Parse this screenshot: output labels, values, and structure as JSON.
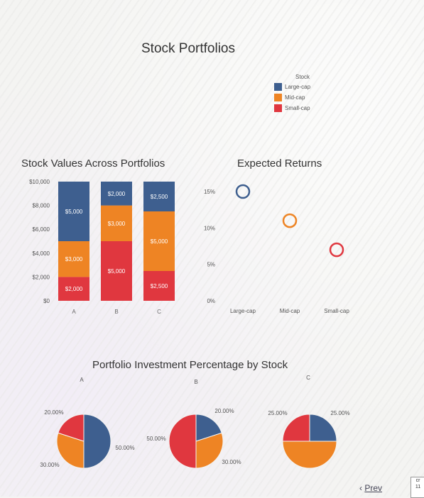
{
  "page": {
    "title": "Stock Portfolios"
  },
  "colors": {
    "large": "#3e5f8f",
    "mid": "#ee8424",
    "small": "#e0373f"
  },
  "legend": {
    "title": "Stock",
    "items": [
      {
        "label": "Large-cap",
        "key": "large"
      },
      {
        "label": "Mid-cap",
        "key": "mid"
      },
      {
        "label": "Small-cap",
        "key": "small"
      }
    ]
  },
  "chart_data": [
    {
      "type": "bar",
      "stacked": true,
      "title": "Stock Values Across Portfolios",
      "categories": [
        "A",
        "B",
        "C"
      ],
      "yticks": [
        "$0",
        "$2,000",
        "$4,000",
        "$6,000",
        "$8,000",
        "$10,000"
      ],
      "ylim": [
        0,
        10000
      ],
      "series": [
        {
          "key": "small",
          "values": [
            2000,
            5000,
            2500
          ],
          "labels": [
            "$2,000",
            "$5,000",
            "$2,500"
          ]
        },
        {
          "key": "mid",
          "values": [
            3000,
            3000,
            5000
          ],
          "labels": [
            "$3,000",
            "$3,000",
            "$5,000"
          ]
        },
        {
          "key": "large",
          "values": [
            5000,
            2000,
            2500
          ],
          "labels": [
            "$5,000",
            "$2,000",
            "$2,500"
          ]
        }
      ]
    },
    {
      "type": "scatter",
      "title": "Expected Returns",
      "categories": [
        "Large-cap",
        "Mid-cap",
        "Small-cap"
      ],
      "yticks": [
        "0%",
        "5%",
        "10%",
        "15%"
      ],
      "ylim": [
        0,
        15
      ],
      "points": [
        {
          "key": "large",
          "value": 15
        },
        {
          "key": "mid",
          "value": 11
        },
        {
          "key": "small",
          "value": 7
        }
      ]
    },
    {
      "type": "pie",
      "title": "Portfolio Investment Percentage by Stock",
      "pies": [
        {
          "label": "A",
          "slices": [
            {
              "key": "large",
              "value": 50,
              "label": ""
            },
            {
              "key": "mid",
              "value": 30,
              "label": "30.00%"
            },
            {
              "key": "small",
              "value": 20,
              "label": "20.00%"
            }
          ]
        },
        {
          "label": "B",
          "slices": [
            {
              "key": "large",
              "value": 20,
              "label": "20.00%"
            },
            {
              "key": "mid",
              "value": 30,
              "label": "30.00%"
            },
            {
              "key": "small",
              "value": 50,
              "label": "50.00%"
            }
          ]
        },
        {
          "label": "C",
          "slices": [
            {
              "key": "large",
              "value": 25,
              "label": "25.00%"
            },
            {
              "key": "mid",
              "value": 50,
              "label": ""
            },
            {
              "key": "small",
              "value": 25,
              "label": "25.00%"
            }
          ]
        }
      ],
      "extra_labels": [
        "50.00%"
      ]
    }
  ],
  "nav": {
    "prev_icon": "‹",
    "prev_label": "Prev",
    "corner_text": [
      "cr",
      "11"
    ]
  }
}
